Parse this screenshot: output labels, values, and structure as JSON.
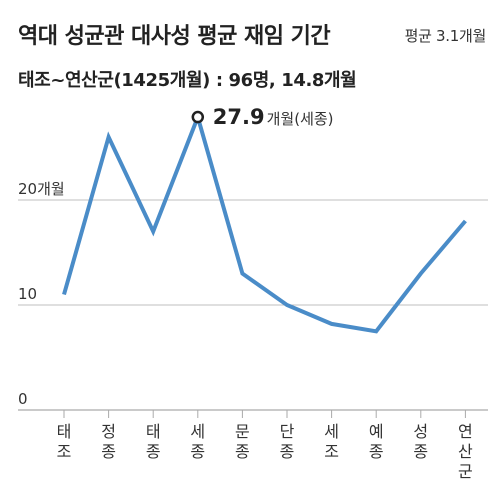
{
  "header": {
    "title": "역대 성균관 대사성 평균 재임 기간",
    "avg_note": "평균 3.1개월",
    "subtitle": "태조~연산군(1425개월) : 96명, 14.8개월"
  },
  "chart_data": {
    "type": "line",
    "title": "역대 성균관 대사성 평균 재임 기간",
    "categories": [
      "태조",
      "정종",
      "태종",
      "세종",
      "문종",
      "단종",
      "세조",
      "예종",
      "성종",
      "연산군"
    ],
    "series": [
      {
        "values": [
          11,
          26,
          17,
          27.9,
          13,
          10,
          8.2,
          7.5,
          13,
          18
        ]
      }
    ],
    "y_ticks": [
      "0",
      "10",
      "20개월"
    ],
    "y_tick_values": [
      0,
      10,
      20
    ],
    "ylim": [
      0,
      30
    ],
    "annotation": {
      "category": "세종",
      "value_text": "27.9",
      "unit_text": "개월(세종)"
    },
    "colors": {
      "line": "#4a8cc8",
      "grid": "#aaaaaa",
      "marker_fill": "#ffffff",
      "marker_stroke": "#222222"
    },
    "grid": true
  }
}
